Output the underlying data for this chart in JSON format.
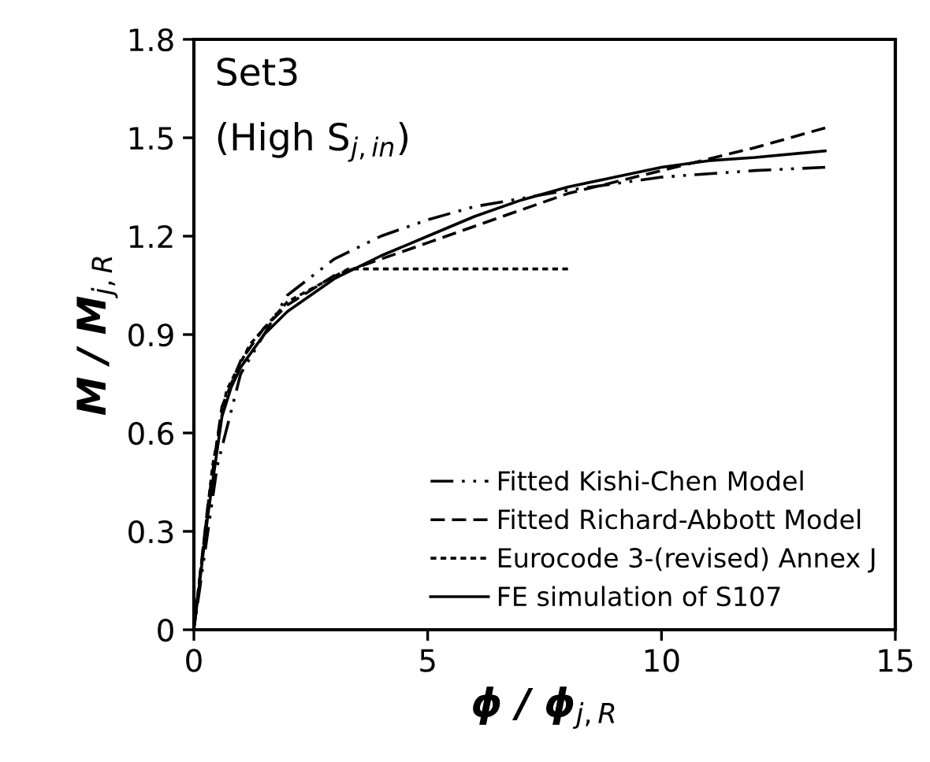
{
  "chart_data": {
    "type": "line",
    "xlabel": "ϕ / ϕ$_{j,R}$",
    "ylabel": "M / M$_{j,R}$",
    "annotations": [
      "Set3",
      "(High S$_{j,in}$)"
    ],
    "xlim": [
      0,
      15
    ],
    "xticks": [
      0,
      5,
      10,
      15
    ],
    "ylim": [
      0,
      1.8
    ],
    "yticks": [
      0,
      0.3,
      0.6,
      0.9,
      1.2,
      1.5,
      1.8
    ],
    "grid": false,
    "legend": "bottom right",
    "marker": "none",
    "series": [
      {
        "name": "Fitted Kishi-Chen Model",
        "color": "#000000",
        "line_style": "dashdot",
        "x": [
          0,
          0.5,
          1,
          2,
          3,
          4,
          5,
          6,
          8,
          10,
          12,
          13.5
        ],
        "values": [
          0,
          0.5,
          0.78,
          1.02,
          1.13,
          1.2,
          1.25,
          1.29,
          1.34,
          1.38,
          1.4,
          1.41
        ]
      },
      {
        "name": "Fitted Richard-Abbott Model",
        "color": "#000000",
        "line_style": "dashed",
        "x": [
          0,
          0.3,
          0.6,
          1,
          1.5,
          2,
          3,
          4,
          5,
          6,
          8,
          10,
          12,
          13.5
        ],
        "values": [
          0,
          0.38,
          0.68,
          0.82,
          0.92,
          0.99,
          1.08,
          1.13,
          1.18,
          1.23,
          1.33,
          1.4,
          1.47,
          1.53
        ]
      },
      {
        "name": "Eurocode 3-(revised) Annex J",
        "color": "#000000",
        "line_style": "dotted",
        "x": [
          0,
          0.4,
          0.7,
          1.2,
          2,
          3.3,
          8
        ],
        "values": [
          0,
          0.5,
          0.73,
          0.87,
          1.0,
          1.1,
          1.1
        ]
      },
      {
        "name": "FE simulation of S107",
        "color": "#000000",
        "line_style": "solid",
        "x": [
          0,
          0.3,
          0.6,
          0.8,
          1,
          1.5,
          2,
          3,
          4,
          5,
          6,
          7,
          8,
          9,
          10,
          11,
          12,
          13.5
        ],
        "values": [
          0,
          0.35,
          0.65,
          0.74,
          0.8,
          0.9,
          0.97,
          1.07,
          1.14,
          1.2,
          1.26,
          1.31,
          1.35,
          1.38,
          1.41,
          1.43,
          1.44,
          1.46
        ]
      }
    ]
  }
}
